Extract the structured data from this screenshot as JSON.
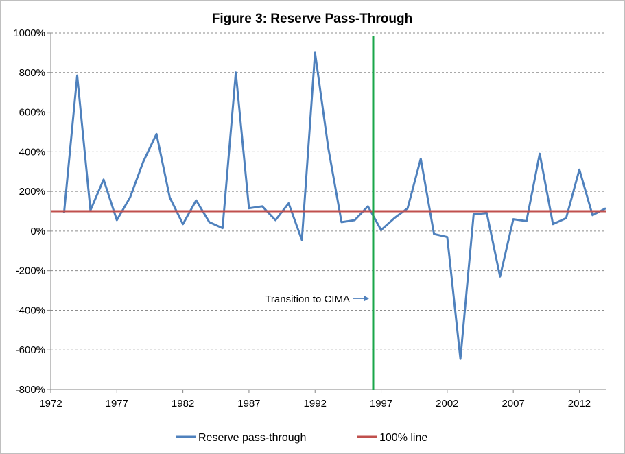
{
  "chart_data": {
    "type": "line",
    "title": "Figure 3: Reserve Pass-Through",
    "x_ticks": [
      "1972",
      "1977",
      "1982",
      "1987",
      "1992",
      "1997",
      "2002",
      "2007",
      "2012"
    ],
    "y_ticks": [
      "1000%",
      "800%",
      "600%",
      "400%",
      "200%",
      "0%",
      "-200%",
      "-400%",
      "-600%",
      "-800%"
    ],
    "xlim": [
      1972,
      2014
    ],
    "ylim": [
      -800,
      1000
    ],
    "grid": "horizontal dashed",
    "legend_position": "bottom",
    "series": [
      {
        "name": "Reserve pass-through",
        "color": "#4f81bd",
        "x": [
          1973,
          1974,
          1975,
          1976,
          1977,
          1978,
          1979,
          1980,
          1981,
          1982,
          1983,
          1984,
          1985,
          1986,
          1987,
          1988,
          1989,
          1990,
          1991,
          1992,
          1993,
          1994,
          1995,
          1996,
          1997,
          1998,
          1999,
          2000,
          2001,
          2002,
          2003,
          2004,
          2005,
          2006,
          2007,
          2008,
          2009,
          2010,
          2011,
          2012,
          2013,
          2014
        ],
        "values": [
          90,
          785,
          105,
          260,
          55,
          170,
          350,
          490,
          170,
          35,
          155,
          45,
          15,
          800,
          115,
          125,
          55,
          140,
          -45,
          900,
          420,
          45,
          55,
          125,
          5,
          65,
          115,
          365,
          -15,
          -30,
          -645,
          85,
          90,
          -230,
          60,
          50,
          390,
          35,
          65,
          310,
          80,
          115
        ]
      },
      {
        "name": "100% line",
        "color": "#c0504d",
        "x": [
          1972,
          2014
        ],
        "values": [
          100,
          100
        ]
      }
    ],
    "vertical_marker": {
      "x": 1996.4,
      "color": "#1aa64a"
    },
    "annotation": {
      "text": "Transition to CIMA",
      "x": 1996.4,
      "y": -340
    }
  }
}
